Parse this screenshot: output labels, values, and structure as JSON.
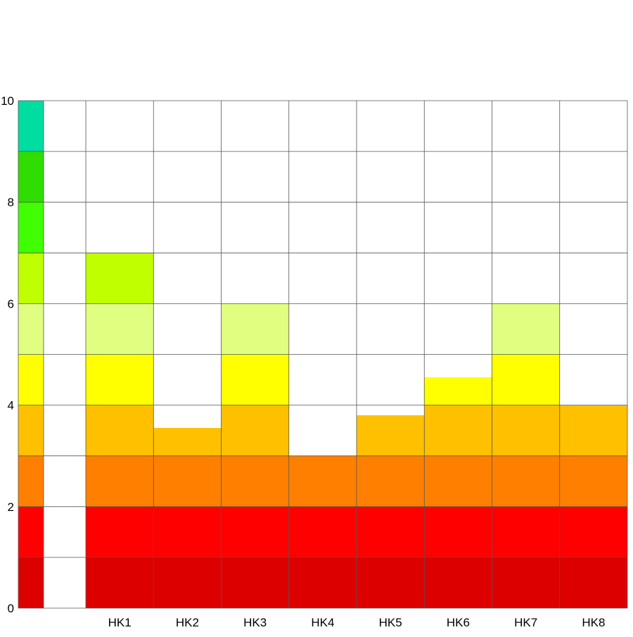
{
  "chart_data": {
    "type": "bar",
    "title": "",
    "xlabel": "",
    "ylabel": "",
    "categories": [
      "HK1",
      "HK2",
      "HK3",
      "HK4",
      "HK5",
      "HK6",
      "HK7",
      "HK8"
    ],
    "values": [
      7,
      3.55,
      6,
      3,
      3.8,
      4.55,
      6,
      4
    ],
    "ylim": [
      0,
      10
    ],
    "yticks": [
      "0",
      "2",
      "4",
      "6",
      "8",
      "10"
    ],
    "ytick_values": [
      0,
      2,
      4,
      6,
      8,
      10
    ],
    "grid": true,
    "legend": "none",
    "color_scale": [
      {
        "from": 0,
        "to": 1,
        "color": "#dd0000"
      },
      {
        "from": 1,
        "to": 2,
        "color": "#ff0000"
      },
      {
        "from": 2,
        "to": 3,
        "color": "#ff8000"
      },
      {
        "from": 3,
        "to": 4,
        "color": "#ffc000"
      },
      {
        "from": 4,
        "to": 5,
        "color": "#ffff00"
      },
      {
        "from": 5,
        "to": 6,
        "color": "#e0ff80"
      },
      {
        "from": 6,
        "to": 7,
        "color": "#c0ff00"
      },
      {
        "from": 7,
        "to": 8,
        "color": "#40ff00"
      },
      {
        "from": 8,
        "to": 9,
        "color": "#30dd00"
      },
      {
        "from": 9,
        "to": 10,
        "color": "#00dda0"
      }
    ],
    "outline_color": "#000000"
  }
}
